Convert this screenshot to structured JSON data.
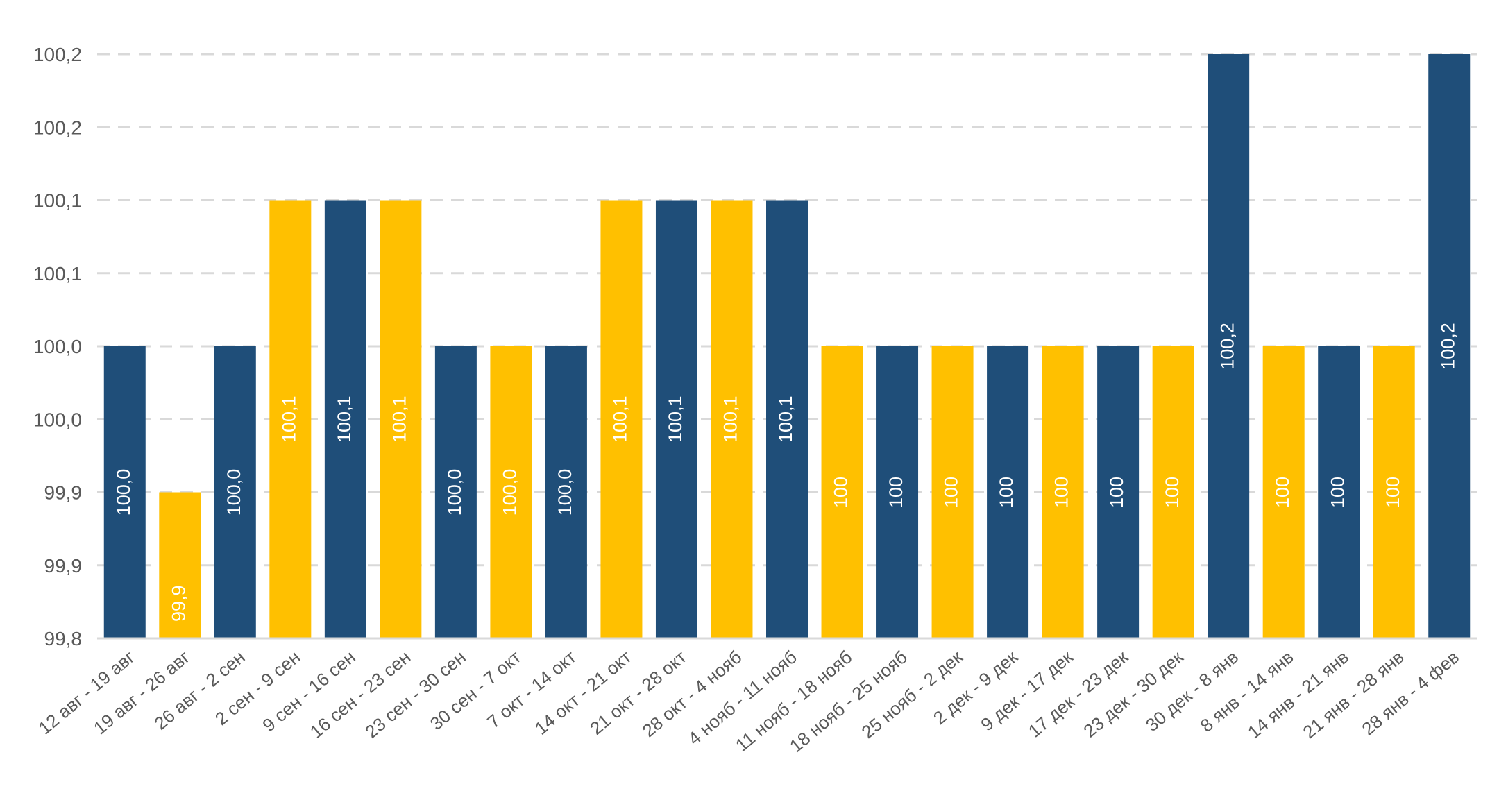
{
  "chart_data": {
    "type": "bar",
    "title": "",
    "xlabel": "",
    "ylabel": "",
    "ylim": [
      99.8,
      100.2
    ],
    "grid": true,
    "legend": "none",
    "y_ticks": [
      {
        "value": 99.8,
        "label": "99,8"
      },
      {
        "value": 99.85,
        "label": "99,9"
      },
      {
        "value": 99.9,
        "label": "99,9"
      },
      {
        "value": 99.95,
        "label": "100,0"
      },
      {
        "value": 100.0,
        "label": "100,0"
      },
      {
        "value": 100.05,
        "label": "100,1"
      },
      {
        "value": 100.1,
        "label": "100,1"
      },
      {
        "value": 100.15,
        "label": "100,2"
      },
      {
        "value": 100.2,
        "label": "100,2"
      }
    ],
    "colors": {
      "navy": "#1F4E79",
      "gold": "#FFC000",
      "grid": "#D9D9D9",
      "axis": "#D9D9D9",
      "tick_text": "#595959"
    },
    "categories": [
      "12 авг - 19 авг",
      "19 авг - 26 авг",
      "26 авг - 2 сен",
      "2 сен - 9 сен",
      "9 сен - 16 сен",
      "16 сен - 23 сен",
      "23 сен - 30 сен",
      "30 сен - 7 окт",
      "7 окт - 14 окт",
      "14 окт - 21 окт",
      "21 окт - 28 окт",
      "28 окт - 4 нояб",
      "4 нояб - 11 нояб",
      "11 нояб - 18 нояб",
      "18 нояб - 25 нояб",
      "25 нояб - 2 дек",
      "2 дек - 9 дек",
      "9 дек - 17 дек",
      "17 дек - 23 дек",
      "23 дек - 30 дек",
      "30 дек - 8 янв",
      "8 янв - 14 янв",
      "14 янв - 21 янв",
      "21 янв - 28 янв",
      "28 янв - 4 фев"
    ],
    "values": [
      100.0,
      99.9,
      100.0,
      100.1,
      100.1,
      100.1,
      100.0,
      100.0,
      100.0,
      100.1,
      100.1,
      100.1,
      100.1,
      100.0,
      100.0,
      100.0,
      100.0,
      100.0,
      100.0,
      100.0,
      100.2,
      100.0,
      100.0,
      100.0,
      100.2
    ],
    "data_labels": [
      "100,0",
      "99,9",
      "100,0",
      "100,1",
      "100,1",
      "100,1",
      "100,0",
      "100,0",
      "100,0",
      "100,1",
      "100,1",
      "100,1",
      "100,1",
      "100",
      "100",
      "100",
      "100",
      "100",
      "100",
      "100",
      "100,2",
      "100",
      "100",
      "100",
      "100,2"
    ],
    "bar_colors": [
      "navy",
      "gold",
      "navy",
      "gold",
      "navy",
      "gold",
      "navy",
      "gold",
      "navy",
      "gold",
      "navy",
      "gold",
      "navy",
      "gold",
      "navy",
      "gold",
      "navy",
      "gold",
      "navy",
      "gold",
      "navy",
      "gold",
      "navy",
      "gold",
      "navy"
    ]
  }
}
